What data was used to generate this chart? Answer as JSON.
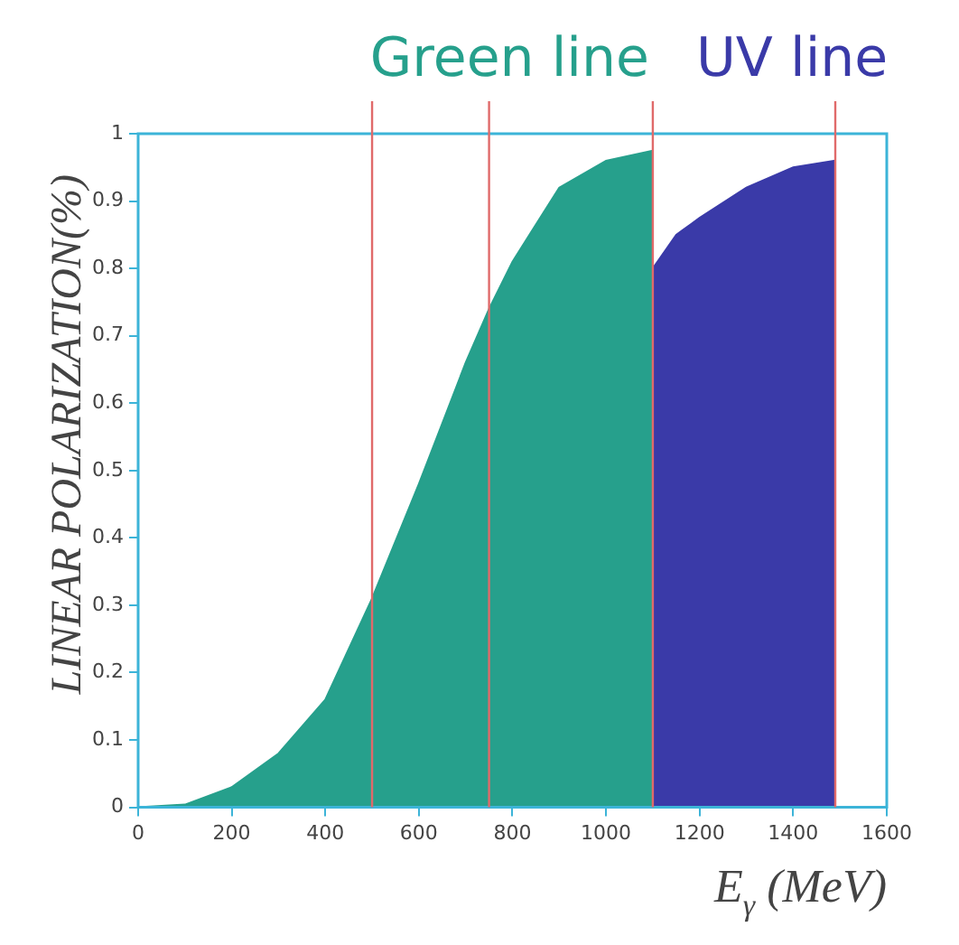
{
  "chart_data": {
    "type": "area",
    "xlabel": "E$_{γ}$ (MeV)",
    "ylabel": "LINEAR POLARIZATION(%)",
    "xlim": [
      0,
      1600
    ],
    "xticks": [
      0,
      200,
      400,
      600,
      800,
      1000,
      1200,
      1400,
      1600
    ],
    "ylim": [
      0,
      1
    ],
    "yticks": [
      0,
      0.1,
      0.2,
      0.3,
      0.4,
      0.5,
      0.6,
      0.7,
      0.8,
      0.9,
      1
    ],
    "grid": false,
    "legend": false,
    "series": [
      {
        "name": "Green line",
        "color": "#26a08c",
        "x": [
          0,
          100,
          200,
          300,
          400,
          500,
          600,
          700,
          750,
          800,
          900,
          1000,
          1100
        ],
        "values": [
          0,
          0.004,
          0.03,
          0.08,
          0.16,
          0.31,
          0.48,
          0.66,
          0.74,
          0.81,
          0.92,
          0.96,
          0.975
        ]
      },
      {
        "name": "UV line",
        "color": "#3a3aa8",
        "x": [
          1100,
          1150,
          1200,
          1300,
          1400,
          1490
        ],
        "values": [
          0.8,
          0.85,
          0.875,
          0.92,
          0.95,
          0.96
        ]
      }
    ],
    "ref_lines": [
      {
        "axis": "x",
        "value": 500,
        "color": "#e06a6a"
      },
      {
        "axis": "x",
        "value": 750,
        "color": "#e06a6a"
      },
      {
        "axis": "x",
        "value": 1100,
        "color": "#e06a6a"
      },
      {
        "axis": "x",
        "value": 1490,
        "color": "#e06a6a"
      }
    ]
  }
}
